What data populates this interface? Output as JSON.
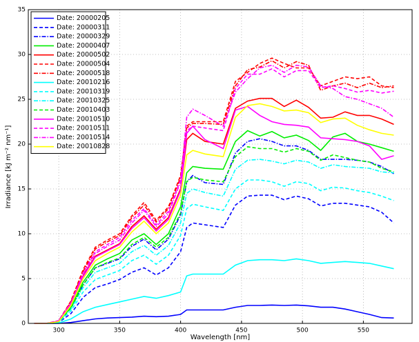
{
  "chart_data": {
    "type": "line",
    "xlabel": "Wavelength [nm]",
    "ylabel": "Irradiance [kJ m⁻² nm⁻¹]",
    "x": [
      280,
      290,
      300,
      310,
      320,
      330,
      340,
      350,
      360,
      370,
      380,
      390,
      400,
      405,
      410,
      420,
      435,
      445,
      455,
      465,
      475,
      485,
      495,
      505,
      515,
      525,
      535,
      545,
      555,
      565,
      575
    ],
    "xlim": [
      275,
      590
    ],
    "xticks": [
      300,
      350,
      400,
      450,
      500,
      550
    ],
    "ylim": [
      0,
      35
    ],
    "yticks": [
      0,
      5,
      10,
      15,
      20,
      25,
      30,
      35
    ],
    "grid": true,
    "legend": "upper-left",
    "series": [
      {
        "name": "Date: 20000205",
        "color": "#0000ff",
        "dash": "solid",
        "values": [
          0,
          0,
          0,
          0.1,
          0.3,
          0.5,
          0.6,
          0.65,
          0.7,
          0.8,
          0.75,
          0.8,
          1,
          1.5,
          1.5,
          1.5,
          1.5,
          1.8,
          2,
          2,
          2.05,
          2,
          2.05,
          1.95,
          1.8,
          1.8,
          1.6,
          1.3,
          1,
          0.65,
          0.6
        ]
      },
      {
        "name": "Date: 20000311",
        "color": "#0000ff",
        "dash": "dashed",
        "values": [
          0,
          0,
          0.1,
          1.1,
          2.9,
          4,
          4.4,
          4.9,
          5.7,
          6.2,
          5.4,
          6.2,
          8,
          10.7,
          11.2,
          11,
          10.7,
          13.2,
          14.2,
          14.3,
          14.3,
          13.8,
          14.2,
          13.9,
          13.1,
          13.4,
          13.4,
          13.2,
          13,
          12.4,
          11.2
        ]
      },
      {
        "name": "Date: 20000329",
        "color": "#0000ff",
        "dash": "dashdot",
        "values": [
          0,
          0,
          0.2,
          1.7,
          4.3,
          6.2,
          6.7,
          7.2,
          8.6,
          9.4,
          8.2,
          9.4,
          12.1,
          15.8,
          16.5,
          15.7,
          15.5,
          19,
          20.3,
          20.6,
          20.3,
          19.8,
          19.8,
          19.3,
          18.3,
          18.3,
          18.3,
          18.2,
          18,
          17.5,
          16.7
        ]
      },
      {
        "name": "Date: 20000407",
        "color": "#00ee00",
        "dash": "solid",
        "values": [
          0,
          0,
          0.2,
          1.8,
          4.6,
          6.5,
          7.2,
          7.8,
          9.3,
          10,
          8.8,
          10,
          13,
          16.8,
          17.5,
          17.3,
          17.2,
          20.3,
          21.5,
          20.9,
          21.4,
          20.7,
          21,
          20.4,
          19.3,
          20.8,
          21.2,
          20.3,
          20,
          19.6,
          19.2
        ]
      },
      {
        "name": "Date: 20000502",
        "color": "#ff0000",
        "dash": "solid",
        "values": [
          0,
          0,
          0.25,
          2.1,
          5.3,
          7.5,
          8.2,
          8.9,
          10.8,
          12,
          10.5,
          11.8,
          15,
          20.5,
          21.2,
          20.3,
          20,
          24,
          24.8,
          25.1,
          25.1,
          24.2,
          24.9,
          24.1,
          22.9,
          23,
          23.6,
          23.2,
          23.2,
          22.8,
          22.2
        ]
      },
      {
        "name": "Date: 20000504",
        "color": "#ff0000",
        "dash": "dashed",
        "values": [
          0,
          0,
          0.3,
          2.5,
          6,
          8.5,
          9.3,
          10,
          12,
          13.5,
          11.5,
          13,
          16.5,
          22,
          22.5,
          22.5,
          22.5,
          27,
          28,
          29,
          29.6,
          29,
          28.5,
          28.5,
          26.5,
          27,
          27.5,
          27.3,
          27.5,
          26.5,
          26.3
        ]
      },
      {
        "name": "Date: 20000518",
        "color": "#ff0000",
        "dash": "dashdot",
        "values": [
          0,
          0,
          0.3,
          2.4,
          5.8,
          8.3,
          9.1,
          9.8,
          11.8,
          13.2,
          11.3,
          12.8,
          16.3,
          21.8,
          22.3,
          22.3,
          22.2,
          26.5,
          28.3,
          28.6,
          29.3,
          28.5,
          29.2,
          28.8,
          26,
          26.5,
          26.8,
          26.3,
          26.8,
          26.3,
          26.5
        ]
      },
      {
        "name": "Date: 20010216",
        "color": "#00ffff",
        "dash": "solid",
        "values": [
          0,
          0,
          0.05,
          0.5,
          1.3,
          1.8,
          2.1,
          2.4,
          2.7,
          3,
          2.8,
          3.1,
          3.5,
          5.3,
          5.5,
          5.5,
          5.5,
          6.5,
          7,
          7.1,
          7.1,
          7,
          7.2,
          7,
          6.7,
          6.8,
          6.9,
          6.8,
          6.7,
          6.4,
          6.1
        ]
      },
      {
        "name": "Date: 20010319",
        "color": "#00ffff",
        "dash": "dashed",
        "values": [
          0,
          0,
          0.15,
          1.4,
          3.5,
          4.9,
          5.4,
          5.9,
          7,
          7.6,
          6.6,
          7.6,
          9.8,
          12.8,
          13.3,
          13,
          12.6,
          15,
          16,
          16,
          15.8,
          15.3,
          15.8,
          15.6,
          14.8,
          15.2,
          15.1,
          14.8,
          14.6,
          14.2,
          13.7
        ]
      },
      {
        "name": "Date: 20010325",
        "color": "#00ffff",
        "dash": "dashdot",
        "values": [
          0,
          0,
          0.2,
          1.6,
          4,
          5.7,
          6.2,
          6.7,
          8,
          8.7,
          7.6,
          8.7,
          11.2,
          14.5,
          15,
          14.6,
          14.2,
          17.2,
          18.2,
          18.3,
          18.1,
          17.8,
          18.2,
          18,
          17.3,
          17.7,
          17.5,
          17.4,
          17.3,
          16.9,
          16.8
        ]
      },
      {
        "name": "Date: 20010403",
        "color": "#00ee00",
        "dash": "dashed",
        "values": [
          0,
          0,
          0.2,
          1.7,
          4.3,
          6.2,
          6.8,
          7.3,
          8.8,
          9.6,
          8.5,
          9.6,
          12.3,
          15.8,
          16.3,
          16,
          15.8,
          18.6,
          19.7,
          19.5,
          19.5,
          19.1,
          19.5,
          19.2,
          18.2,
          18.8,
          18.5,
          18.2,
          18,
          17.3,
          16.9
        ]
      },
      {
        "name": "Date: 20010510",
        "color": "#ff00ff",
        "dash": "solid",
        "values": [
          0,
          0,
          0.25,
          2.1,
          5.2,
          7.4,
          8.1,
          8.8,
          10.6,
          11.8,
          10.3,
          11.6,
          14.8,
          21.2,
          22,
          20.5,
          19.5,
          23.8,
          24.2,
          23.2,
          22.5,
          22.2,
          22.1,
          21.9,
          20.7,
          20.6,
          20.5,
          20.3,
          19.8,
          18.3,
          18.7
        ]
      },
      {
        "name": "Date: 20010511",
        "color": "#ff00ff",
        "dash": "dashed",
        "values": [
          0,
          0,
          0.3,
          2.3,
          5.6,
          8,
          8.8,
          9.6,
          11.5,
          12.8,
          11,
          12.5,
          16,
          21.5,
          22,
          21.8,
          21.5,
          26.2,
          27.8,
          27.8,
          28.4,
          27.5,
          28.2,
          28.2,
          26.3,
          26.5,
          26.2,
          25.8,
          26,
          25.7,
          25.9
        ]
      },
      {
        "name": "Date: 20010514",
        "color": "#ff00ff",
        "dash": "dashdot",
        "values": [
          0,
          0,
          0.3,
          2.2,
          5.5,
          7.8,
          8.6,
          9.3,
          11.2,
          12.6,
          10.8,
          12.2,
          15.8,
          23,
          23.9,
          23.2,
          22,
          25.8,
          27.3,
          28.5,
          28.8,
          28,
          28.8,
          28.6,
          26.5,
          26.2,
          25.3,
          25,
          24.5,
          24,
          23
        ]
      },
      {
        "name": "Date: 20010828",
        "color": "#ffff00",
        "dash": "solid",
        "values": [
          0,
          0,
          0.2,
          2,
          5,
          7,
          7.8,
          8.5,
          10.2,
          11.4,
          10,
          11.2,
          14.3,
          18.8,
          19.3,
          18.9,
          18.6,
          23,
          24.3,
          24.5,
          24.2,
          23.7,
          23.8,
          23.5,
          22.4,
          22.8,
          22.9,
          22.1,
          21.6,
          21.2,
          21
        ]
      }
    ]
  }
}
